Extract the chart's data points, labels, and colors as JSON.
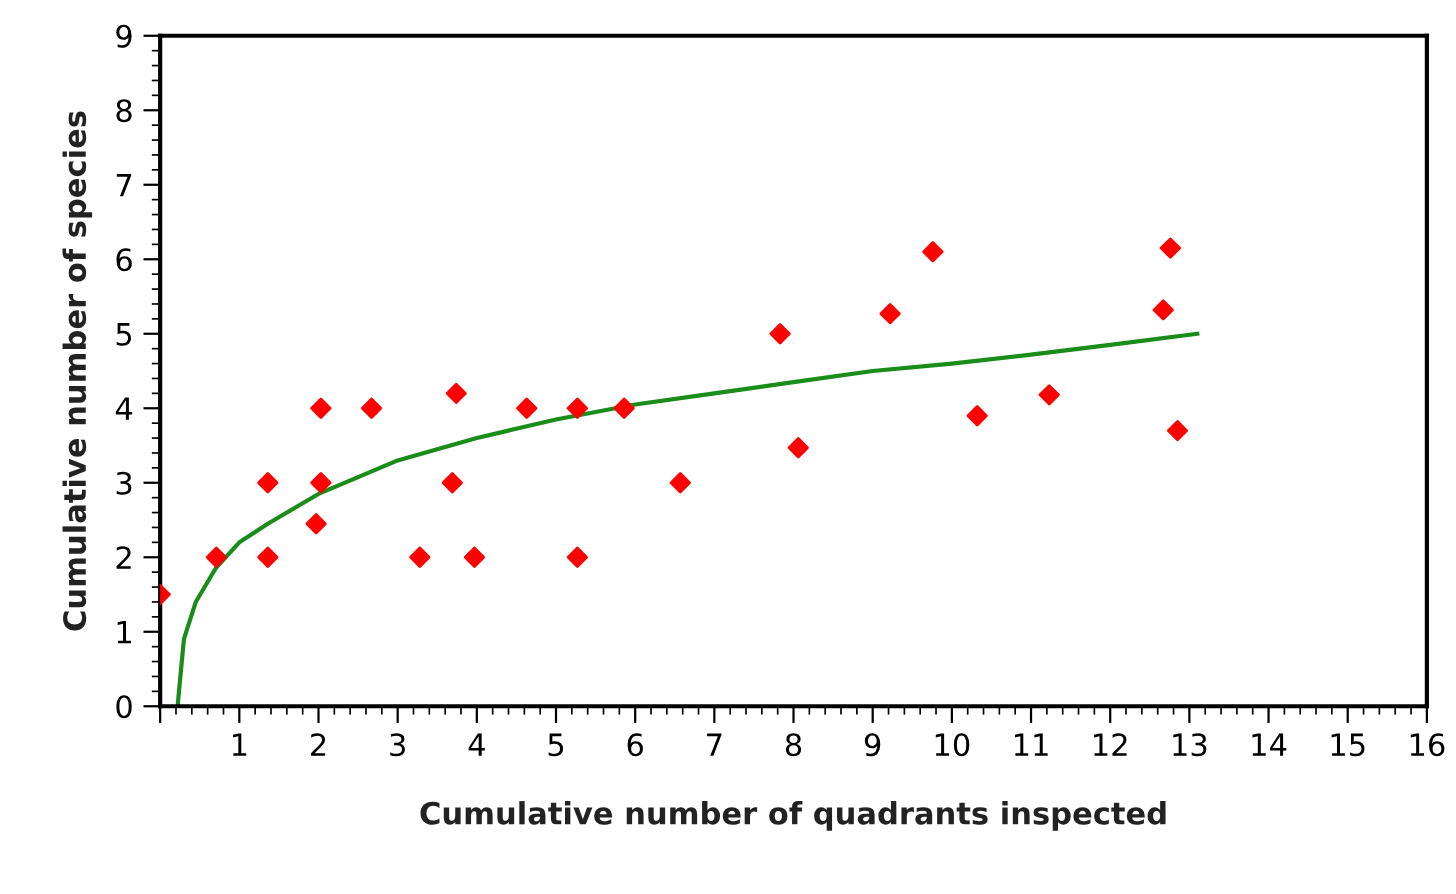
{
  "chart_data": {
    "type": "scatter",
    "xlabel": "Cumulative number of quadrants inspected",
    "ylabel": "Cumulative number of species",
    "xlim": [
      0,
      16
    ],
    "ylim": [
      0,
      9
    ],
    "xticks": [
      {
        "value": 0,
        "label": null
      },
      1,
      2,
      3,
      4,
      5,
      6,
      7,
      8,
      9,
      10,
      11,
      12,
      13,
      14,
      15,
      16
    ],
    "yticks": [
      0,
      1,
      2,
      3,
      4,
      5,
      6,
      7,
      8,
      9
    ],
    "grid": false,
    "legend": false,
    "series": [
      {
        "color": "#ff0000",
        "marker": "diamond",
        "x": [
          0,
          0.71,
          1.36,
          1.36,
          2.03,
          2.03,
          1.97,
          2.67,
          3.28,
          3.74,
          3.69,
          3.97,
          4.63,
          5.27,
          5.27,
          5.86,
          6.57,
          7.83,
          8.06,
          9.22,
          9.76,
          10.32,
          11.23,
          12.67,
          12.76,
          12.85
        ],
        "values": [
          1.5,
          2,
          3,
          2,
          4,
          3,
          2.45,
          4,
          2,
          4.2,
          3,
          2,
          4,
          4,
          2,
          4,
          3,
          5,
          3.47,
          5.27,
          6.1,
          3.9,
          4.18,
          5.32,
          6.15,
          3.7
        ]
      },
      {
        "type": "line",
        "color": "#1a8c1a",
        "marker": "none",
        "line_style": "solid",
        "x": [
          0.22,
          0.3,
          0.45,
          0.7,
          1.0,
          1.36,
          2,
          3,
          4,
          5,
          6,
          7,
          8,
          9,
          10,
          11,
          12,
          13.1
        ],
        "values": [
          0,
          0.9,
          1.4,
          1.85,
          2.2,
          2.45,
          2.85,
          3.3,
          3.6,
          3.85,
          4.05,
          4.2,
          4.35,
          4.5,
          4.6,
          4.72,
          4.85,
          5.0
        ]
      }
    ]
  }
}
